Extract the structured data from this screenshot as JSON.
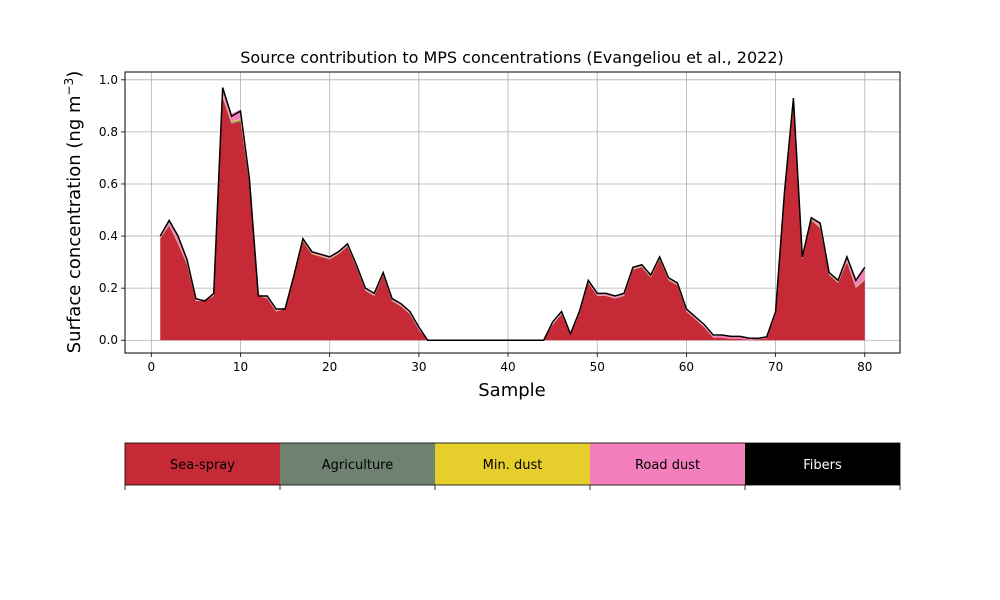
{
  "chart_data": {
    "type": "area",
    "title": "Source contribution to MPS concentrations (Evangeliou et al., 2022)",
    "xlabel": "Sample",
    "ylabel_main": "Surface concentration (ng m",
    "ylabel_sup": "−3",
    "ylabel_close": ")",
    "xlim": [
      -2.95,
      83.95
    ],
    "ylim": [
      -0.049,
      1.03
    ],
    "grid": true,
    "xticks": [
      0,
      10,
      20,
      30,
      40,
      50,
      60,
      70,
      80
    ],
    "yticks": [
      0.0,
      0.2,
      0.4,
      0.6,
      0.8,
      1.0
    ],
    "ytick_labels": [
      "0.0",
      "0.2",
      "0.4",
      "0.6",
      "0.8",
      "1.0"
    ],
    "x": [
      1,
      2,
      3,
      4,
      5,
      6,
      7,
      8,
      9,
      10,
      11,
      12,
      13,
      14,
      15,
      16,
      17,
      18,
      19,
      20,
      21,
      22,
      23,
      24,
      25,
      26,
      27,
      28,
      29,
      30,
      31,
      32,
      33,
      34,
      35,
      36,
      37,
      38,
      39,
      40,
      41,
      42,
      43,
      44,
      45,
      46,
      47,
      48,
      49,
      50,
      51,
      52,
      53,
      54,
      55,
      56,
      57,
      58,
      59,
      60,
      61,
      62,
      63,
      64,
      65,
      66,
      67,
      68,
      69,
      70,
      71,
      72,
      73,
      74,
      75,
      76,
      77,
      78,
      79,
      80
    ],
    "series": [
      {
        "name": "Sea-spray",
        "color": "#c62a37",
        "values": [
          0.39,
          0.44,
          0.37,
          0.29,
          0.15,
          0.15,
          0.17,
          0.93,
          0.83,
          0.84,
          0.6,
          0.17,
          0.16,
          0.11,
          0.12,
          0.24,
          0.38,
          0.33,
          0.32,
          0.31,
          0.33,
          0.36,
          0.28,
          0.19,
          0.17,
          0.25,
          0.15,
          0.13,
          0.1,
          0.04,
          0.0,
          0.0,
          0.0,
          0.0,
          0.0,
          0.0,
          0.0,
          0.0,
          0.0,
          0.0,
          0.0,
          0.0,
          0.0,
          0.0,
          0.06,
          0.1,
          0.02,
          0.1,
          0.22,
          0.17,
          0.17,
          0.16,
          0.17,
          0.27,
          0.28,
          0.24,
          0.31,
          0.23,
          0.21,
          0.11,
          0.08,
          0.05,
          0.01,
          0.01,
          0.005,
          0.005,
          0.002,
          0.003,
          0.008,
          0.1,
          0.55,
          0.9,
          0.31,
          0.46,
          0.43,
          0.25,
          0.22,
          0.3,
          0.2,
          0.23
        ]
      },
      {
        "name": "Agriculture",
        "color": "#6f8171",
        "values": [
          0.002,
          0.002,
          0.002,
          0.002,
          0.001,
          0.001,
          0.001,
          0.005,
          0.005,
          0.005,
          0.003,
          0.001,
          0.001,
          0.001,
          0.001,
          0.002,
          0.002,
          0.002,
          0.002,
          0.002,
          0.002,
          0.002,
          0.002,
          0.001,
          0.001,
          0.002,
          0.001,
          0.001,
          0.001,
          0.0,
          0.0,
          0.0,
          0.0,
          0.0,
          0.0,
          0.0,
          0.0,
          0.0,
          0.0,
          0.0,
          0.0,
          0.0,
          0.0,
          0.0,
          0.0,
          0.001,
          0.0,
          0.001,
          0.001,
          0.001,
          0.001,
          0.001,
          0.001,
          0.002,
          0.002,
          0.002,
          0.002,
          0.002,
          0.001,
          0.001,
          0.001,
          0.0,
          0.0,
          0.0,
          0.0,
          0.0,
          0.0,
          0.0,
          0.0,
          0.001,
          0.003,
          0.005,
          0.002,
          0.003,
          0.003,
          0.002,
          0.002,
          0.002,
          0.002,
          0.003
        ]
      },
      {
        "name": "Min. dust",
        "color": "#e6cf2d",
        "values": [
          0.002,
          0.002,
          0.002,
          0.002,
          0.001,
          0.001,
          0.001,
          0.005,
          0.005,
          0.005,
          0.003,
          0.001,
          0.001,
          0.001,
          0.001,
          0.002,
          0.002,
          0.002,
          0.002,
          0.002,
          0.002,
          0.002,
          0.002,
          0.001,
          0.001,
          0.002,
          0.001,
          0.001,
          0.001,
          0.0,
          0.0,
          0.0,
          0.0,
          0.0,
          0.0,
          0.0,
          0.0,
          0.0,
          0.0,
          0.0,
          0.0,
          0.0,
          0.0,
          0.0,
          0.0,
          0.001,
          0.0,
          0.001,
          0.001,
          0.001,
          0.001,
          0.001,
          0.001,
          0.002,
          0.002,
          0.002,
          0.002,
          0.002,
          0.001,
          0.001,
          0.001,
          0.0,
          0.0,
          0.0,
          0.0,
          0.0,
          0.0,
          0.0,
          0.0,
          0.001,
          0.003,
          0.005,
          0.002,
          0.003,
          0.003,
          0.002,
          0.002,
          0.002,
          0.002,
          0.003
        ]
      },
      {
        "name": "Road dust",
        "color": "#f47fbd",
        "values": [
          0.01,
          0.015,
          0.02,
          0.015,
          0.005,
          0.005,
          0.005,
          0.035,
          0.03,
          0.035,
          0.015,
          0.005,
          0.005,
          0.004,
          0.004,
          0.008,
          0.008,
          0.006,
          0.006,
          0.006,
          0.006,
          0.008,
          0.006,
          0.004,
          0.004,
          0.008,
          0.005,
          0.004,
          0.003,
          0.002,
          0.0,
          0.0,
          0.0,
          0.0,
          0.0,
          0.0,
          0.0,
          0.0,
          0.0,
          0.0,
          0.0,
          0.0,
          0.0,
          0.0,
          0.002,
          0.003,
          0.002,
          0.003,
          0.008,
          0.005,
          0.005,
          0.005,
          0.005,
          0.006,
          0.006,
          0.006,
          0.007,
          0.006,
          0.006,
          0.005,
          0.004,
          0.003,
          0.005,
          0.008,
          0.01,
          0.01,
          0.006,
          0.004,
          0.005,
          0.004,
          0.012,
          0.02,
          0.006,
          0.008,
          0.01,
          0.008,
          0.008,
          0.012,
          0.025,
          0.04
        ]
      },
      {
        "name": "Fibers",
        "color": "#000000",
        "values": [
          0.0,
          0.0,
          0.0,
          0.0,
          0.0,
          0.0,
          0.0,
          0.0,
          0.0,
          0.0,
          0.0,
          0.0,
          0.0,
          0.0,
          0.0,
          0.0,
          0.0,
          0.0,
          0.0,
          0.0,
          0.0,
          0.0,
          0.0,
          0.0,
          0.0,
          0.0,
          0.0,
          0.0,
          0.0,
          0.0,
          0.0,
          0.0,
          0.0,
          0.0,
          0.0,
          0.0,
          0.0,
          0.0,
          0.0,
          0.0,
          0.0,
          0.0,
          0.0,
          0.0,
          0.0,
          0.0,
          0.0,
          0.0,
          0.0,
          0.0,
          0.0,
          0.0,
          0.0,
          0.0,
          0.0,
          0.0,
          0.0,
          0.0,
          0.0,
          0.0,
          0.0,
          0.0,
          0.0,
          0.0,
          0.0,
          0.0,
          0.0,
          0.0,
          0.0,
          0.0,
          0.0,
          0.0,
          0.0,
          0.0,
          0.0,
          0.0,
          0.0,
          0.0,
          0.0,
          0.0
        ]
      }
    ],
    "total": [
      0.4,
      0.46,
      0.4,
      0.31,
      0.16,
      0.15,
      0.18,
      0.97,
      0.86,
      0.88,
      0.62,
      0.17,
      0.17,
      0.12,
      0.12,
      0.25,
      0.39,
      0.34,
      0.33,
      0.32,
      0.34,
      0.37,
      0.29,
      0.2,
      0.18,
      0.26,
      0.16,
      0.14,
      0.11,
      0.05,
      0.0,
      0.0,
      0.0,
      0.0,
      0.0,
      0.0,
      0.0,
      0.0,
      0.0,
      0.0,
      0.0,
      0.0,
      0.0,
      0.0,
      0.07,
      0.11,
      0.025,
      0.11,
      0.23,
      0.18,
      0.18,
      0.17,
      0.18,
      0.28,
      0.29,
      0.25,
      0.32,
      0.24,
      0.22,
      0.12,
      0.09,
      0.06,
      0.02,
      0.02,
      0.015,
      0.015,
      0.008,
      0.007,
      0.013,
      0.11,
      0.57,
      0.93,
      0.32,
      0.47,
      0.45,
      0.26,
      0.23,
      0.32,
      0.23,
      0.28
    ],
    "legend": {
      "placement": "below",
      "entries": [
        {
          "label": "Sea-spray",
          "color": "#c62a37",
          "text_color": "#000000"
        },
        {
          "label": "Agriculture",
          "color": "#6f8171",
          "text_color": "#000000"
        },
        {
          "label": "Min. dust",
          "color": "#e6cf2d",
          "text_color": "#000000"
        },
        {
          "label": "Road dust",
          "color": "#f47fbd",
          "text_color": "#000000"
        },
        {
          "label": "Fibers",
          "color": "#000000",
          "text_color": "#ffffff"
        }
      ]
    }
  }
}
